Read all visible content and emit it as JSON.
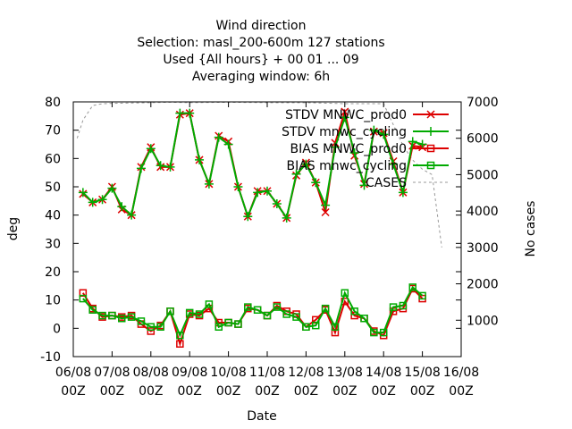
{
  "chart_data": {
    "type": "line",
    "title_lines": [
      "Wind direction",
      "Selection: masl_200-600m    127 stations",
      "Used {All hours} + 00 01 ... 09",
      "Averaging window:  6h"
    ],
    "xlabel": "Date",
    "ylabel": "deg",
    "y2label": "No cases",
    "xlim": [
      0,
      10
    ],
    "ylim": [
      -10,
      80
    ],
    "y2lim": [
      0,
      7000
    ],
    "x_ticks": [
      {
        "x": 0,
        "line1": "06/08",
        "line2": "00Z"
      },
      {
        "x": 1,
        "line1": "07/08",
        "line2": "00Z"
      },
      {
        "x": 2,
        "line1": "08/08",
        "line2": "00Z"
      },
      {
        "x": 3,
        "line1": "09/08",
        "line2": "00Z"
      },
      {
        "x": 4,
        "line1": "10/08",
        "line2": "00Z"
      },
      {
        "x": 5,
        "line1": "11/08",
        "line2": "00Z"
      },
      {
        "x": 6,
        "line1": "12/08",
        "line2": "00Z"
      },
      {
        "x": 7,
        "line1": "13/08",
        "line2": "00Z"
      },
      {
        "x": 8,
        "line1": "14/08",
        "line2": "00Z"
      },
      {
        "x": 9,
        "line1": "15/08",
        "line2": "00Z"
      },
      {
        "x": 10,
        "line1": "16/08",
        "line2": "00Z"
      }
    ],
    "y_ticks": [
      -10,
      0,
      10,
      20,
      30,
      40,
      50,
      60,
      70,
      80
    ],
    "y2_ticks": [
      1000,
      2000,
      3000,
      4000,
      5000,
      6000,
      7000
    ],
    "legend_position": "top-right",
    "grid": false,
    "x": [
      0.25,
      0.5,
      0.75,
      1.0,
      1.25,
      1.5,
      1.75,
      2.0,
      2.25,
      2.5,
      2.75,
      3.0,
      3.25,
      3.5,
      3.75,
      4.0,
      4.25,
      4.5,
      4.75,
      5.0,
      5.25,
      5.5,
      5.75,
      6.0,
      6.25,
      6.5,
      6.75,
      7.0,
      7.25,
      7.5,
      7.75,
      8.0,
      8.25,
      8.5,
      8.75,
      9.0
    ],
    "series": [
      {
        "name": "STDV MNWC_prod0",
        "axis": "y1",
        "color": "#dd0000",
        "marker": "x",
        "values": [
          47.5,
          44.5,
          45.5,
          50,
          42,
          40,
          57,
          64,
          57,
          57,
          75.5,
          76,
          59.5,
          51,
          68,
          66,
          50,
          39.5,
          48.5,
          48.5,
          44,
          39,
          54,
          58.5,
          51.5,
          41,
          65.5,
          76.5,
          61,
          51,
          69.5,
          69,
          59,
          48,
          64.5,
          64
        ]
      },
      {
        "name": "STDV mnwc_cycling",
        "axis": "y1",
        "color": "#00aa00",
        "marker": "+",
        "values": [
          48,
          44.5,
          45.5,
          49.5,
          43,
          40,
          56.5,
          63.5,
          57.5,
          57,
          76,
          76,
          59.5,
          51,
          67.5,
          65,
          50,
          39.5,
          48,
          48.5,
          44,
          39,
          54.5,
          58,
          51.5,
          43.5,
          64,
          74.5,
          62,
          50.5,
          70,
          68.5,
          58,
          48,
          66,
          65
        ]
      },
      {
        "name": "BIAS MNWC_prod0",
        "axis": "y1",
        "color": "#dd0000",
        "marker": "square",
        "values": [
          12.5,
          7,
          4,
          4.5,
          4,
          4.5,
          1.5,
          -1,
          1,
          6,
          -5.5,
          5,
          4.5,
          7,
          2,
          2,
          1.5,
          7,
          6.5,
          4.5,
          8,
          6,
          5,
          0.5,
          3,
          6.5,
          -1.5,
          9.5,
          4.5,
          3.5,
          -1,
          -2.5,
          6,
          7,
          14,
          10.5
        ]
      },
      {
        "name": "BIAS mnwc_cycling",
        "axis": "y1",
        "color": "#00aa00",
        "marker": "square",
        "values": [
          10.5,
          6.5,
          4.5,
          4.5,
          3.5,
          4,
          2.5,
          0.5,
          0.5,
          6,
          -2.5,
          5.5,
          5,
          8.5,
          0.5,
          2,
          1.5,
          7.5,
          6.5,
          4.5,
          7.5,
          5,
          4,
          0.5,
          1,
          7,
          0.5,
          12.5,
          6,
          3.5,
          -1.5,
          -1.5,
          7.5,
          8,
          14.5,
          11.5
        ]
      },
      {
        "name": "CASES",
        "axis": "y2",
        "color": "#999999",
        "dash": true,
        "x": [
          0.1,
          0.25,
          0.5,
          0.75,
          1.0,
          1.5,
          2.0,
          2.5,
          3.0,
          4.0,
          5.0,
          6.0,
          7.0,
          8.0,
          8.5,
          8.75,
          9.0,
          9.25,
          9.5
        ],
        "values": [
          6000,
          6500,
          6900,
          6950,
          6960,
          6970,
          6980,
          6990,
          6980,
          6990,
          6980,
          6980,
          6950,
          6950,
          5800,
          5400,
          5150,
          5000,
          3000
        ]
      }
    ]
  }
}
